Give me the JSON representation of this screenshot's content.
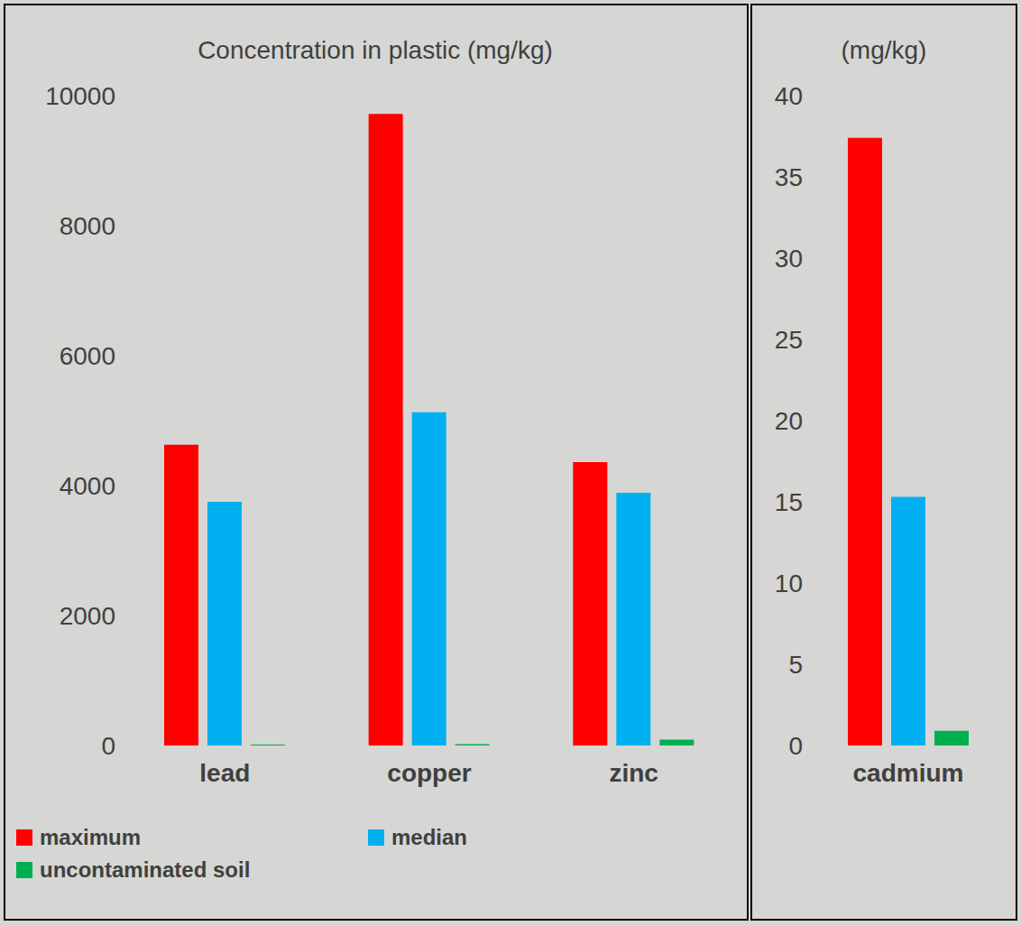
{
  "chart_data": [
    {
      "type": "bar",
      "title": "Concentration in plastic (mg/kg)",
      "categories": [
        "lead",
        "copper",
        "zinc"
      ],
      "series": [
        {
          "name": "maximum",
          "color": "#ff0000",
          "values": [
            4630,
            9720,
            4360
          ]
        },
        {
          "name": "median",
          "color": "#00b0f0",
          "values": [
            3750,
            5130,
            3890
          ]
        },
        {
          "name": "uncontaminated soil",
          "color": "#00b050",
          "values": [
            15,
            20,
            90
          ]
        }
      ],
      "ylim": [
        0,
        10000
      ],
      "yticks": [
        0,
        2000,
        4000,
        6000,
        8000,
        10000
      ],
      "grid": false,
      "legend": "bottom"
    },
    {
      "type": "bar",
      "title": "(mg/kg)",
      "categories": [
        "cadmium"
      ],
      "series": [
        {
          "name": "maximum",
          "color": "#ff0000",
          "values": [
            37.4
          ]
        },
        {
          "name": "median",
          "color": "#00b0f0",
          "values": [
            15.3
          ]
        },
        {
          "name": "uncontaminated soil",
          "color": "#00b050",
          "values": [
            0.9
          ]
        }
      ],
      "ylim": [
        0,
        40
      ],
      "yticks": [
        0,
        5,
        10,
        15,
        20,
        25,
        30,
        35,
        40
      ],
      "grid": false
    }
  ]
}
